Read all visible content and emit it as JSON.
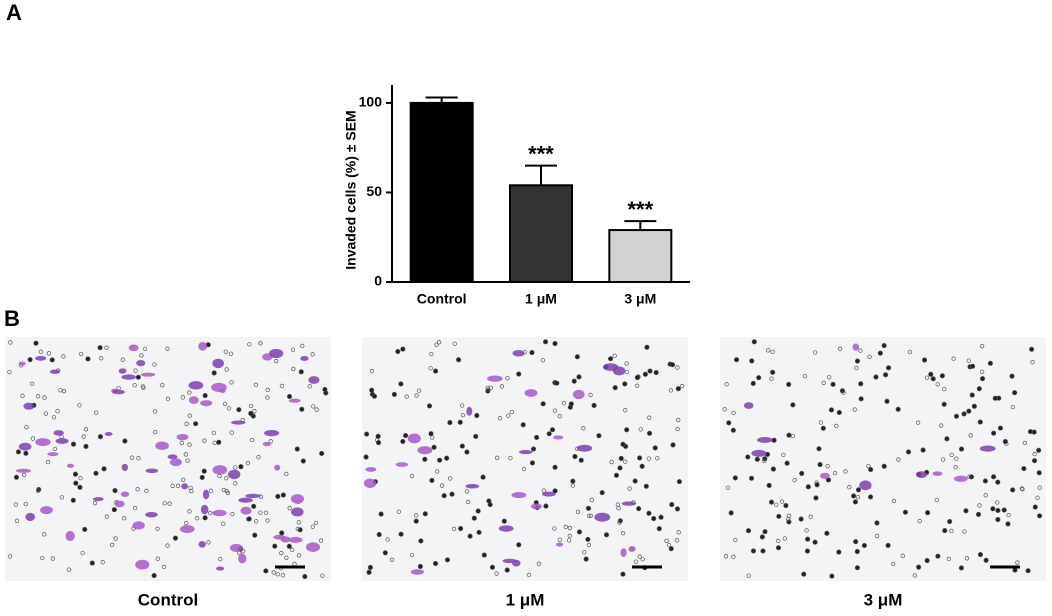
{
  "panel_labels": [
    "A",
    "B"
  ],
  "chart_data": {
    "type": "bar",
    "y_label": "Invaded cells (%) ± SEM",
    "categories": [
      "Control",
      "1 μM",
      "3 μM"
    ],
    "values": [
      100,
      54,
      29
    ],
    "errors": [
      3,
      11,
      5
    ],
    "colors": [
      "#000000",
      "#333333",
      "#d3d3d3"
    ],
    "annotations": [
      {
        "category": "1 μM",
        "text": "***"
      },
      {
        "category": "3 μM",
        "text": "***"
      }
    ],
    "ylim": [
      0,
      110
    ],
    "yticks": [
      0,
      50,
      100
    ]
  },
  "images": [
    {
      "caption": "Control"
    },
    {
      "caption": "1 μM"
    },
    {
      "caption": "3 μM"
    }
  ]
}
